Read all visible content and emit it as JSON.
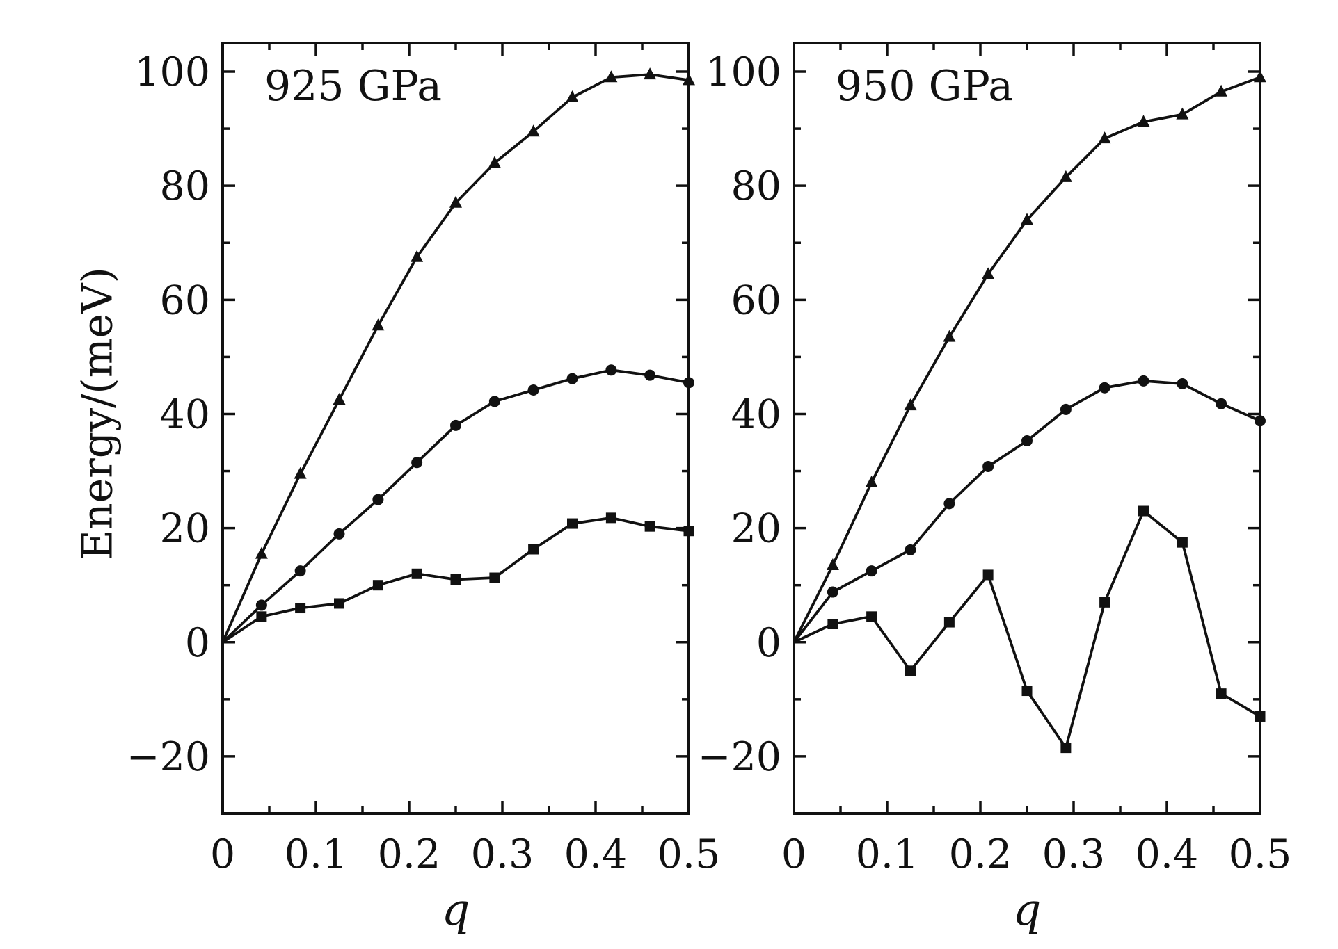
{
  "figure": {
    "ylabel": "Energy/(meV)",
    "colors": {
      "axes": "#111111",
      "series": "#111111",
      "background": "#ffffff"
    }
  },
  "chart_data": [
    {
      "type": "line",
      "title": "",
      "inset_label": "925 GPa",
      "xlabel": "q",
      "ylabel": "Energy/(meV)",
      "xlim": [
        0,
        0.5
      ],
      "ylim": [
        -30,
        105
      ],
      "xticks": [
        0,
        0.1,
        0.2,
        0.3,
        0.4,
        0.5
      ],
      "xtick_labels": [
        "0",
        "0.1",
        "0.2",
        "0.3",
        "0.4",
        "0.5"
      ],
      "yticks": [
        -20,
        0,
        20,
        40,
        60,
        80,
        100
      ],
      "ytick_labels": [
        "−20",
        "0",
        "20",
        "40",
        "60",
        "80",
        "100"
      ],
      "grid": false,
      "legend": "none",
      "x": [
        0,
        0.0417,
        0.0833,
        0.125,
        0.1667,
        0.2083,
        0.25,
        0.2917,
        0.3333,
        0.375,
        0.4167,
        0.4583,
        0.5
      ],
      "series": [
        {
          "name": "triangle",
          "marker": "triangle",
          "values": [
            0,
            15.5,
            29.5,
            42.5,
            55.5,
            67.5,
            77,
            84,
            89.5,
            95.5,
            99,
            99.5,
            98.5
          ]
        },
        {
          "name": "circle",
          "marker": "circle",
          "values": [
            0,
            6.5,
            12.5,
            19,
            25,
            31.5,
            38,
            42.2,
            44.2,
            46.2,
            47.7,
            46.8,
            45.5
          ]
        },
        {
          "name": "square",
          "marker": "square",
          "values": [
            0,
            4.5,
            6,
            6.8,
            10,
            12,
            11,
            11.3,
            16.3,
            20.8,
            21.8,
            20.3,
            19.5
          ]
        }
      ]
    },
    {
      "type": "line",
      "title": "",
      "inset_label": "950 GPa",
      "xlabel": "q",
      "ylabel": "",
      "xlim": [
        0,
        0.5
      ],
      "ylim": [
        -30,
        105
      ],
      "xticks": [
        0,
        0.1,
        0.2,
        0.3,
        0.4,
        0.5
      ],
      "xtick_labels": [
        "0",
        "0.1",
        "0.2",
        "0.3",
        "0.4",
        "0.5"
      ],
      "yticks": [
        -20,
        0,
        20,
        40,
        60,
        80,
        100
      ],
      "ytick_labels": [
        "−20",
        "0",
        "20",
        "40",
        "60",
        "80",
        "100"
      ],
      "grid": false,
      "legend": "none",
      "x": [
        0,
        0.0417,
        0.0833,
        0.125,
        0.1667,
        0.2083,
        0.25,
        0.2917,
        0.3333,
        0.375,
        0.4167,
        0.4583,
        0.5
      ],
      "series": [
        {
          "name": "triangle",
          "marker": "triangle",
          "values": [
            0,
            13.5,
            28,
            41.5,
            53.5,
            64.5,
            74,
            81.5,
            88.3,
            91.2,
            92.5,
            96.5,
            99
          ]
        },
        {
          "name": "circle",
          "marker": "circle",
          "values": [
            0,
            8.8,
            12.5,
            16.2,
            24.3,
            30.8,
            35.3,
            40.8,
            44.6,
            45.8,
            45.3,
            41.8,
            38.8
          ]
        },
        {
          "name": "square",
          "marker": "square",
          "values": [
            0,
            3.2,
            4.5,
            -5,
            3.5,
            11.8,
            -8.5,
            -18.5,
            7,
            23,
            17.5,
            -9,
            -13
          ]
        }
      ]
    }
  ]
}
